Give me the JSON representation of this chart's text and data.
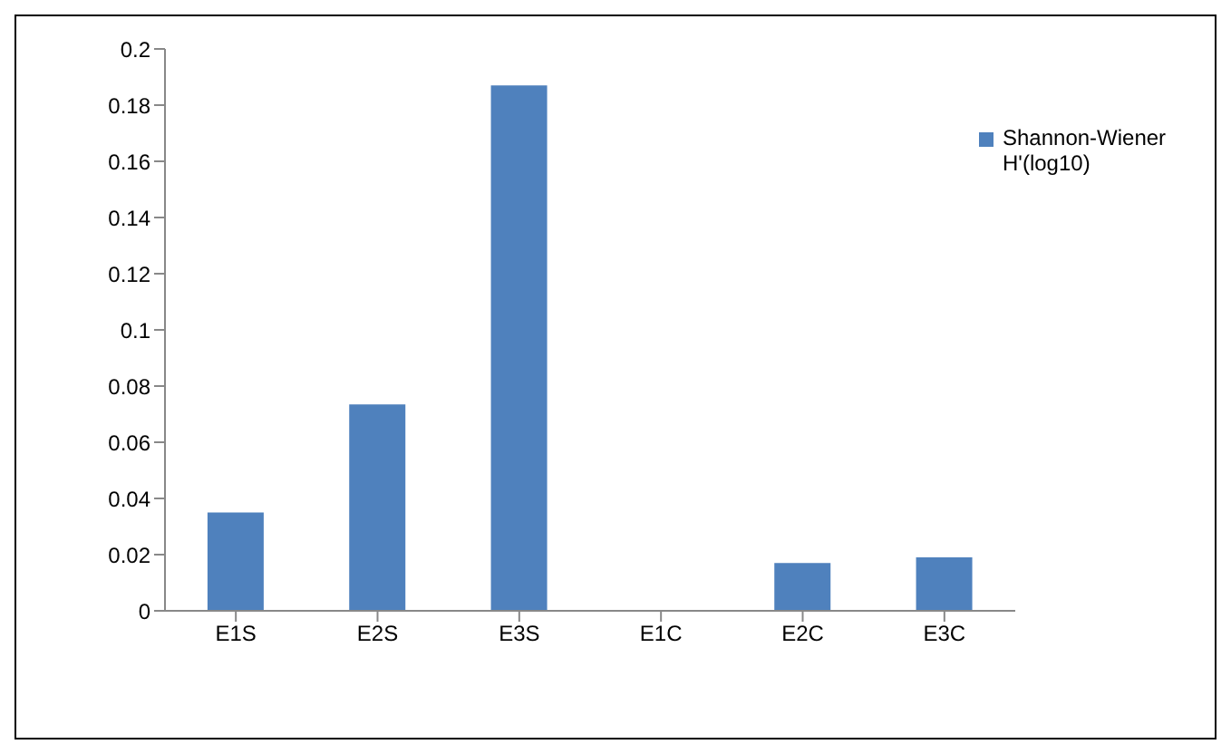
{
  "chart_data": {
    "type": "bar",
    "categories": [
      "E1S",
      "E2S",
      "E3S",
      "E1C",
      "E2C",
      "E3C"
    ],
    "series": [
      {
        "name": "Shannon-Wiener H'(log10)",
        "color": "#4f81bd",
        "values": [
          0.035,
          0.0735,
          0.187,
          0,
          0.017,
          0.019
        ]
      }
    ],
    "ylim": [
      0,
      0.2
    ],
    "yticks": [
      0,
      0.02,
      0.04,
      0.06,
      0.08,
      0.1,
      0.12,
      0.14,
      0.16,
      0.18,
      0.2
    ],
    "legend": "top right"
  }
}
